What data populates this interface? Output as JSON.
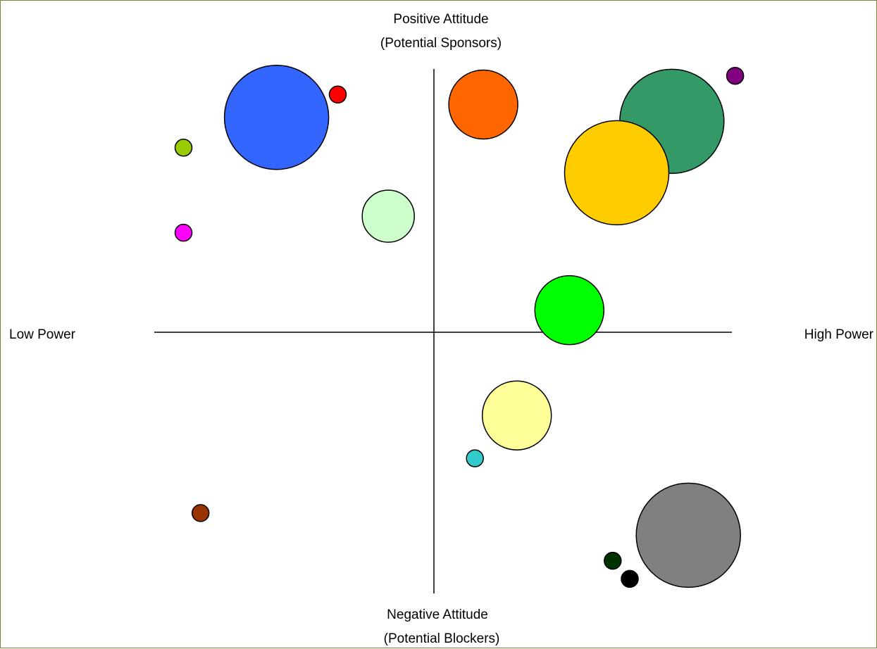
{
  "chart_data": {
    "type": "scatter",
    "title": "",
    "labels": {
      "top_line1": "Positive Attitude",
      "top_line2": "(Potential Sponsors)",
      "bottom_line1": "Negative Attitude",
      "bottom_line2": "(Potential Blockers)",
      "left": "Low Power",
      "right": "High Power"
    },
    "xlim": [
      -100,
      100
    ],
    "ylim": [
      -100,
      100
    ],
    "grid": false,
    "legend": "none",
    "points": [
      {
        "x": -54.5,
        "y": 81.6,
        "size": 74,
        "color": "#3366ff"
      },
      {
        "x": -33.3,
        "y": 90.3,
        "size": 12,
        "color": "#ff0000"
      },
      {
        "x": -86.7,
        "y": 70.1,
        "size": 12,
        "color": "#99cc00"
      },
      {
        "x": -86.7,
        "y": 37.8,
        "size": 12,
        "color": "#ff00ff"
      },
      {
        "x": -15.8,
        "y": 44.1,
        "size": 37,
        "color": "#ccffcc"
      },
      {
        "x": 17.1,
        "y": 86.5,
        "size": 49,
        "color": "#ff6600"
      },
      {
        "x": 82.4,
        "y": 80.1,
        "size": 74,
        "color": "#339966"
      },
      {
        "x": 63.3,
        "y": 60.6,
        "size": 74,
        "color": "#ffcc00"
      },
      {
        "x": 104.3,
        "y": 97.4,
        "size": 12,
        "color": "#800080"
      },
      {
        "x": 46.9,
        "y": 8.4,
        "size": 49,
        "color": "#00ff00"
      },
      {
        "x": 28.7,
        "y": -31.6,
        "size": 49,
        "color": "#ffff99"
      },
      {
        "x": 14.2,
        "y": -47.9,
        "size": 12,
        "color": "#33cccc"
      },
      {
        "x": -80.8,
        "y": -68.7,
        "size": 12,
        "color": "#993300"
      },
      {
        "x": 88.1,
        "y": -77.1,
        "size": 74,
        "color": "#808080"
      },
      {
        "x": 61.9,
        "y": -86.8,
        "size": 12,
        "color": "#003300"
      },
      {
        "x": 67.8,
        "y": -93.7,
        "size": 12,
        "color": "#000000"
      }
    ]
  }
}
